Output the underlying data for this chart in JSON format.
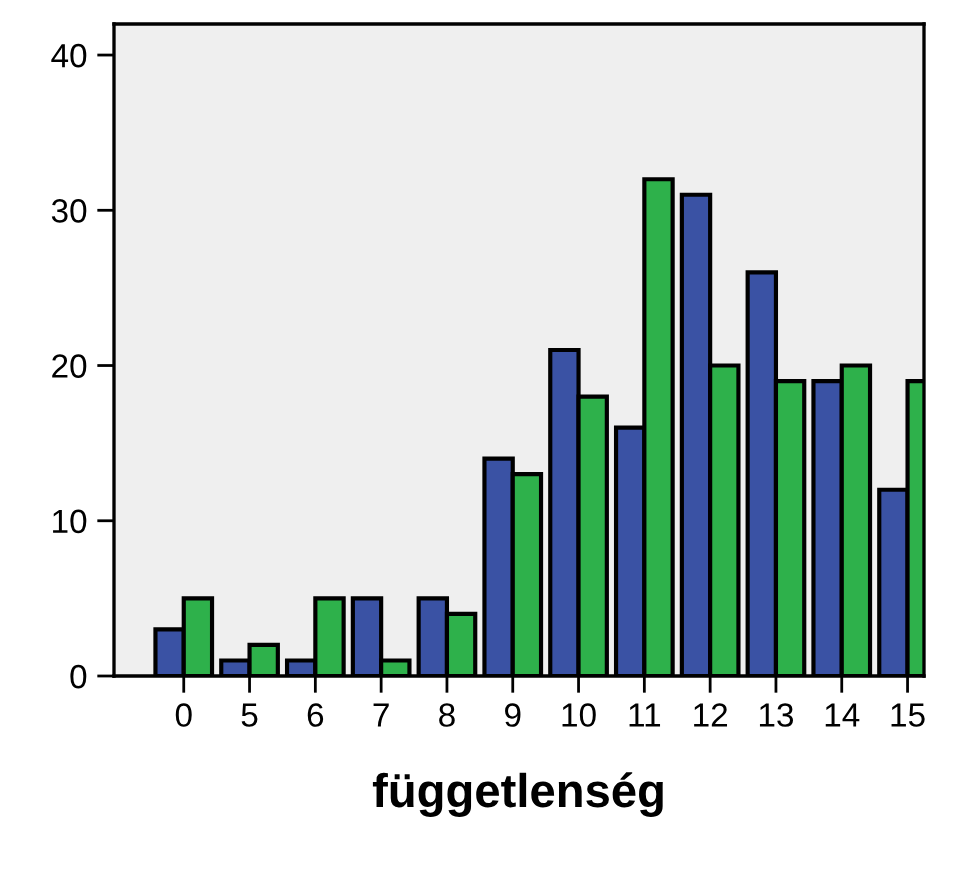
{
  "chart_data": {
    "type": "bar",
    "xlabel": "függetlenség",
    "categories": [
      "0",
      "5",
      "6",
      "7",
      "8",
      "9",
      "10",
      "11",
      "12",
      "13",
      "14",
      "15"
    ],
    "series": [
      {
        "color": "#3a52a4",
        "values": [
          3,
          1,
          1,
          5,
          5,
          14,
          21,
          16,
          31,
          26,
          19,
          12
        ]
      },
      {
        "color": "#2eb14b",
        "values": [
          5,
          2,
          5,
          1,
          4,
          13,
          18,
          32,
          20,
          19,
          20,
          19
        ]
      }
    ],
    "ylim": [
      0,
      42
    ],
    "yticks": [
      0,
      10,
      20,
      30,
      40
    ],
    "grid": false,
    "legend": false
  }
}
